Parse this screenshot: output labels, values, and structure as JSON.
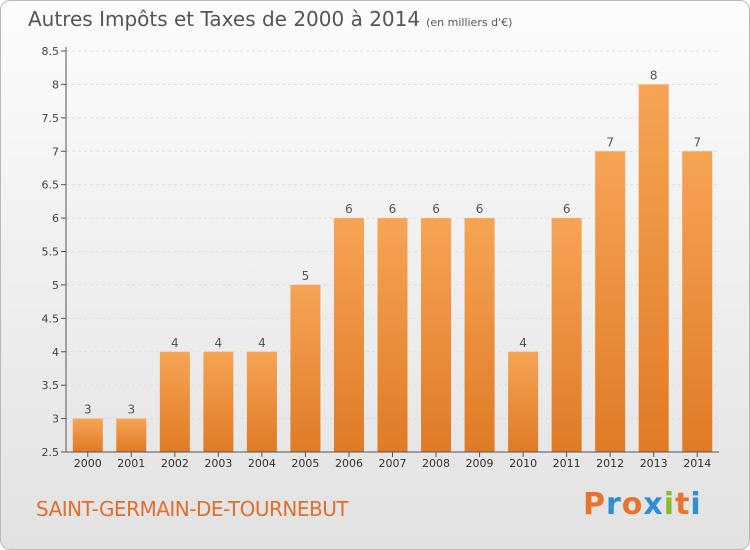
{
  "header": {
    "title": "Autres Impôts et Taxes de 2000 à 2014",
    "unit": "(en milliers d'€)"
  },
  "footer": {
    "commune": "SAINT-GERMAIN-DE-TOURNEBUT",
    "brand": "Proxiti",
    "brand_colors": [
      "#e8732d",
      "#2f8fd6",
      "#e8732d",
      "#2f8fd6",
      "#8bbd2a",
      "#e8732d",
      "#2f8fd6"
    ]
  },
  "colors": {
    "bar_top": "#f6a455",
    "bar_bottom": "#e07a25",
    "axis": "#555555",
    "grid": "#dddddd",
    "commune_text": "#e06f2c"
  },
  "chart_data": {
    "type": "bar",
    "title": "Autres Impôts et Taxes de 2000 à 2014",
    "subtitle": "(en milliers d'€)",
    "categories": [
      "2000",
      "2001",
      "2002",
      "2003",
      "2004",
      "2005",
      "2006",
      "2007",
      "2008",
      "2009",
      "2010",
      "2011",
      "2012",
      "2013",
      "2014"
    ],
    "values": [
      3,
      3,
      4,
      4,
      4,
      5,
      6,
      6,
      6,
      6,
      4,
      6,
      7,
      8,
      7
    ],
    "data_labels": [
      "3",
      "3",
      "4",
      "4",
      "4",
      "5",
      "6",
      "6",
      "6",
      "6",
      "4",
      "6",
      "7",
      "8",
      "7"
    ],
    "yticks": [
      "2.5",
      "3",
      "3.5",
      "4",
      "4.5",
      "5",
      "5.5",
      "6",
      "6.5",
      "7",
      "7.5",
      "8",
      "8.5"
    ],
    "ylim": [
      2.5,
      8.5
    ],
    "grid": true,
    "legend": "none"
  }
}
